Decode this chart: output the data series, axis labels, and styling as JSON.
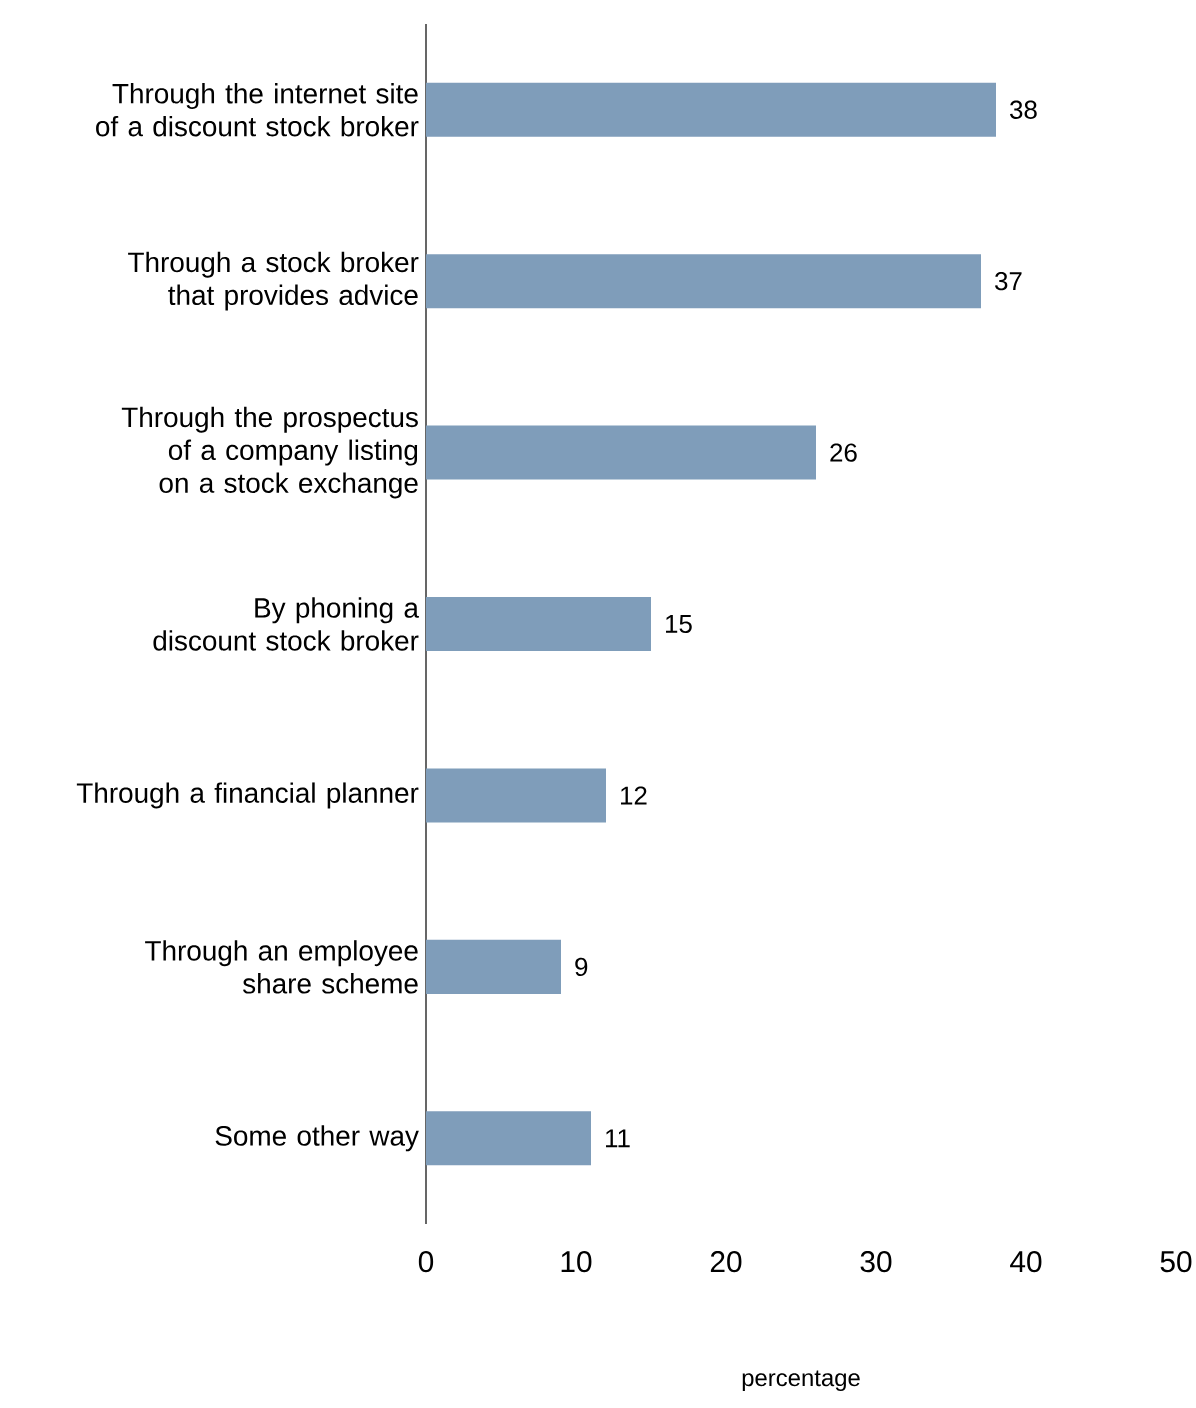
{
  "chart_data": {
    "type": "bar",
    "orientation": "horizontal",
    "categories": [
      "Through the internet site of a discount stock broker",
      "Through a stock broker that provides advice",
      "Through the prospectus of a company listing on a stock exchange",
      "By phoning a discount stock broker",
      "Through a financial planner",
      "Through an employee share scheme",
      "Some other way"
    ],
    "values": [
      38,
      37,
      26,
      15,
      12,
      9,
      11
    ],
    "color": "#7f9dba",
    "xlim": [
      0,
      50
    ],
    "xticks": [
      0,
      10,
      20,
      30,
      40,
      50
    ],
    "xlabel": "percentage",
    "data_labels": true
  }
}
